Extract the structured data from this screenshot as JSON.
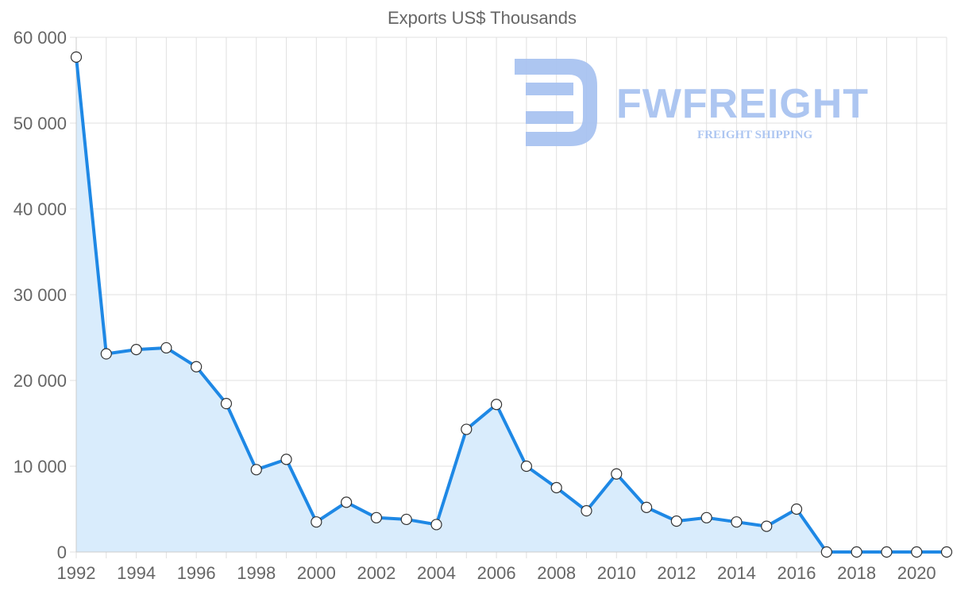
{
  "watermark": {
    "name": "FWFREIGHT",
    "tagline": "FREIGHT SHIPPING",
    "color": "#a9c3f1"
  },
  "chart_data": {
    "type": "area",
    "title": "Exports US$ Thousands",
    "xlabel": "",
    "ylabel": "",
    "x": [
      1992,
      1993,
      1994,
      1995,
      1996,
      1997,
      1998,
      1999,
      2000,
      2001,
      2002,
      2003,
      2004,
      2005,
      2006,
      2007,
      2008,
      2009,
      2010,
      2011,
      2012,
      2013,
      2014,
      2015,
      2016,
      2017,
      2018,
      2019,
      2020,
      2021
    ],
    "values": [
      57700,
      23100,
      23600,
      23800,
      21600,
      17300,
      9600,
      10800,
      3500,
      5800,
      4000,
      3800,
      3200,
      14300,
      17200,
      10000,
      7500,
      4800,
      9100,
      5200,
      3600,
      4000,
      3500,
      3000,
      5000,
      0,
      0,
      0,
      0,
      0
    ],
    "xticks": [
      1992,
      1994,
      1996,
      1998,
      2000,
      2002,
      2004,
      2006,
      2008,
      2010,
      2012,
      2014,
      2016,
      2018,
      2020
    ],
    "xtick_labels": [
      "1992",
      "1994",
      "1996",
      "1998",
      "2000",
      "2002",
      "2004",
      "2006",
      "2008",
      "2010",
      "2012",
      "2014",
      "2016",
      "2018",
      "2020"
    ],
    "yticks": [
      0,
      10000,
      20000,
      30000,
      40000,
      50000,
      60000
    ],
    "ytick_labels": [
      "0",
      "10 000",
      "20 000",
      "30 000",
      "40 000",
      "50 000",
      "60 000"
    ],
    "xlim": [
      1992,
      2021
    ],
    "ylim": [
      0,
      60000
    ],
    "grid": true,
    "legend": "none",
    "line_color": "#1e88e5",
    "fill_color": "#d9ecfc",
    "marker_fill": "#ffffff",
    "marker_stroke": "#333333",
    "grid_color": "#e0e0e0",
    "text_color": "#666666"
  }
}
